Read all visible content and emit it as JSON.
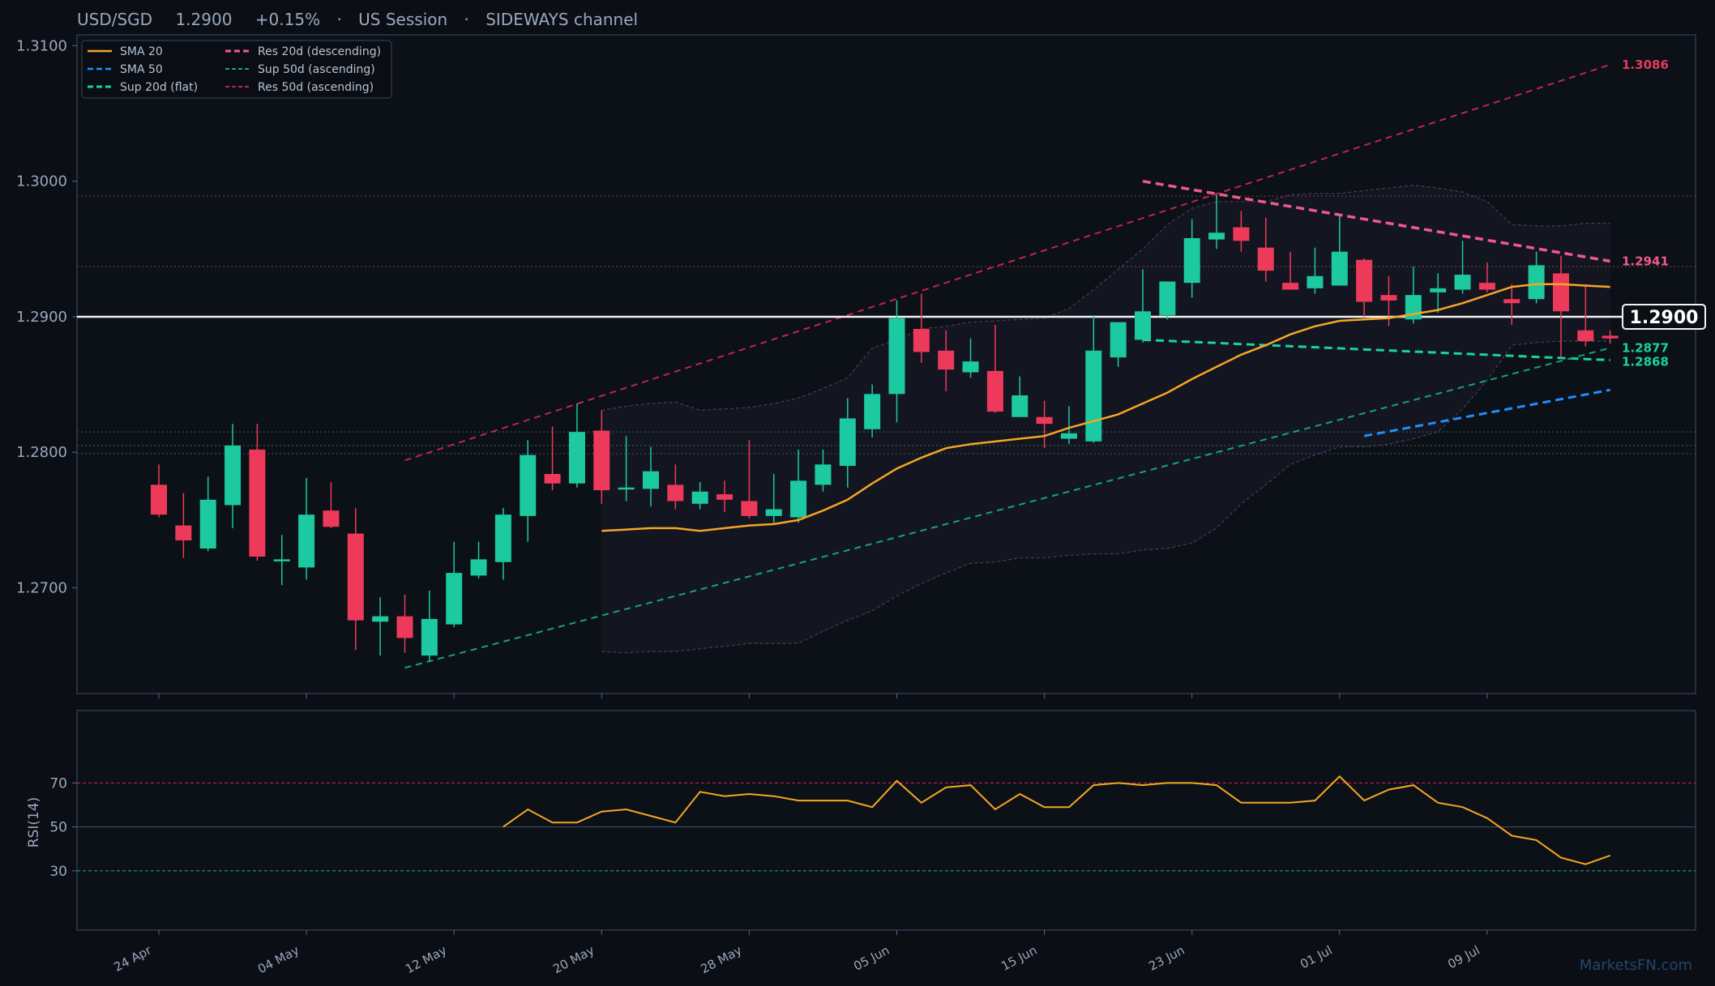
{
  "header": {
    "symbol": "USD/SGD",
    "price": "1.2900",
    "change": "+0.15%",
    "sep": "·",
    "session": "US Session",
    "channel": "SIDEWAYS channel"
  },
  "watermark": "MarketsFN.com",
  "colors": {
    "bg": "#0b0e14",
    "panel_border": "#2b3a52",
    "up": "#1dc9a0",
    "down": "#ee3a5a",
    "sma20": "#f5a623",
    "sma50": "#1e90ff",
    "sup20": "#19d3a2",
    "res20": "#ee5a8c",
    "sup50": "#16a37a",
    "res50": "#c0254f",
    "rsi": "#f5a623",
    "text": "#9aa8bd"
  },
  "chart_data": [
    {
      "type": "candlestick",
      "x_ticks": [
        "24 Apr",
        "04 May",
        "12 May",
        "20 May",
        "28 May",
        "05 Jun",
        "15 Jun",
        "23 Jun",
        "01 Jul",
        "09 Jul"
      ],
      "x_tick_index": [
        0,
        6,
        12,
        18,
        24,
        30,
        36,
        42,
        48,
        54
      ],
      "ylim": [
        1.2622,
        1.3108
      ],
      "y_ticks": [
        "1.2700",
        "1.2800",
        "1.2900",
        "1.3000",
        "1.3100"
      ],
      "y_tick_values": [
        1.27,
        1.28,
        1.29,
        1.3,
        1.31
      ],
      "ohlc": [
        [
          1.2776,
          1.2791,
          1.2752,
          1.2754
        ],
        [
          1.2746,
          1.277,
          1.2722,
          1.2735
        ],
        [
          1.2729,
          1.2782,
          1.2727,
          1.2765
        ],
        [
          1.2761,
          1.2821,
          1.2744,
          1.2805
        ],
        [
          1.2802,
          1.2821,
          1.272,
          1.2723
        ],
        [
          1.272,
          1.2739,
          1.2702,
          1.2721
        ],
        [
          1.2715,
          1.2781,
          1.2706,
          1.2754
        ],
        [
          1.2757,
          1.2778,
          1.2744,
          1.2745
        ],
        [
          1.274,
          1.2759,
          1.2654,
          1.2676
        ],
        [
          1.2675,
          1.2693,
          1.265,
          1.2679
        ],
        [
          1.2679,
          1.2695,
          1.2652,
          1.2663
        ],
        [
          1.265,
          1.2698,
          1.2646,
          1.2677
        ],
        [
          1.2673,
          1.2734,
          1.2671,
          1.2711
        ],
        [
          1.2709,
          1.2734,
          1.2707,
          1.2721
        ],
        [
          1.2719,
          1.2759,
          1.2706,
          1.2754
        ],
        [
          1.2753,
          1.2809,
          1.2734,
          1.2798
        ],
        [
          1.2784,
          1.2819,
          1.2772,
          1.2777
        ],
        [
          1.2777,
          1.2836,
          1.2774,
          1.2815
        ],
        [
          1.2816,
          1.2831,
          1.2762,
          1.2772
        ],
        [
          1.2773,
          1.2812,
          1.2764,
          1.2774
        ],
        [
          1.2773,
          1.2804,
          1.276,
          1.2786
        ],
        [
          1.2776,
          1.2791,
          1.2758,
          1.2764
        ],
        [
          1.2762,
          1.2778,
          1.2758,
          1.2771
        ],
        [
          1.2769,
          1.2779,
          1.2756,
          1.2765
        ],
        [
          1.2764,
          1.2809,
          1.2751,
          1.2753
        ],
        [
          1.2753,
          1.2784,
          1.2748,
          1.2758
        ],
        [
          1.2752,
          1.2802,
          1.2748,
          1.2779
        ],
        [
          1.2776,
          1.2802,
          1.2771,
          1.2791
        ],
        [
          1.279,
          1.284,
          1.2774,
          1.2825
        ],
        [
          1.2817,
          1.285,
          1.2811,
          1.2843
        ],
        [
          1.2843,
          1.2912,
          1.2822,
          1.2899
        ],
        [
          1.2891,
          1.2917,
          1.2866,
          1.2874
        ],
        [
          1.2875,
          1.289,
          1.2845,
          1.2861
        ],
        [
          1.2859,
          1.2884,
          1.2855,
          1.2867
        ],
        [
          1.286,
          1.2894,
          1.2829,
          1.283
        ],
        [
          1.2826,
          1.2856,
          1.2826,
          1.2842
        ],
        [
          1.2826,
          1.2838,
          1.2803,
          1.2821
        ],
        [
          1.281,
          1.2834,
          1.2806,
          1.2814
        ],
        [
          1.2808,
          1.2901,
          1.2807,
          1.2875
        ],
        [
          1.287,
          1.2896,
          1.2863,
          1.2896
        ],
        [
          1.2883,
          1.2935,
          1.2881,
          1.2904
        ],
        [
          1.2901,
          1.2926,
          1.2898,
          1.2926
        ],
        [
          1.2925,
          1.2972,
          1.2914,
          1.2958
        ],
        [
          1.2957,
          1.299,
          1.295,
          1.2962
        ],
        [
          1.2966,
          1.2978,
          1.2948,
          1.2956
        ],
        [
          1.2951,
          1.2973,
          1.2926,
          1.2934
        ],
        [
          1.2925,
          1.2948,
          1.292,
          1.292
        ],
        [
          1.2921,
          1.2951,
          1.2917,
          1.293
        ],
        [
          1.2923,
          1.2974,
          1.2923,
          1.2948
        ],
        [
          1.2942,
          1.2943,
          1.29,
          1.2911
        ],
        [
          1.2916,
          1.293,
          1.2893,
          1.2912
        ],
        [
          1.2898,
          1.2937,
          1.2895,
          1.2916
        ],
        [
          1.2918,
          1.2932,
          1.2903,
          1.2921
        ],
        [
          1.292,
          1.2956,
          1.2917,
          1.2931
        ],
        [
          1.2925,
          1.294,
          1.2918,
          1.292
        ],
        [
          1.2913,
          1.2924,
          1.2894,
          1.291
        ],
        [
          1.2913,
          1.2948,
          1.291,
          1.2938
        ],
        [
          1.2932,
          1.2945,
          1.287,
          1.2904
        ],
        [
          1.289,
          1.2924,
          1.2878,
          1.2882
        ],
        [
          1.2886,
          1.289,
          1.288,
          1.2884
        ]
      ],
      "series": [
        {
          "name": "SMA 20",
          "style": "solid",
          "start": 18,
          "values": [
            1.2742,
            1.2743,
            1.2744,
            1.2744,
            1.2742,
            1.2744,
            1.2746,
            1.2747,
            1.275,
            1.2757,
            1.2765,
            1.2777,
            1.2788,
            1.2796,
            1.2803,
            1.2806,
            1.2808,
            1.281,
            1.2812,
            1.2818,
            1.2823,
            1.2828,
            1.2836,
            1.2844,
            1.2854,
            1.2863,
            1.2872,
            1.2879,
            1.2887,
            1.2893,
            1.2897,
            1.2898,
            1.2899,
            1.2902,
            1.2905,
            1.291,
            1.2916,
            1.2922,
            1.2924,
            1.2924,
            1.2923,
            1.2922
          ]
        },
        {
          "name": "SMA 50",
          "style": "dashed",
          "start": 49,
          "values": [
            1.2812,
            1.2846
          ],
          "end": 59
        },
        {
          "name": "Sup 20d (flat)",
          "style": "dashed",
          "start": 40,
          "values": [
            1.2883,
            1.2868
          ],
          "end": 59
        },
        {
          "name": "Res 20d (descending)",
          "style": "dashed",
          "start": 40,
          "values": [
            1.3,
            1.2941
          ],
          "end": 59
        },
        {
          "name": "Sup 50d (ascending)",
          "style": "dashed",
          "start": 10,
          "values": [
            1.2641,
            1.2877
          ],
          "end": 59
        },
        {
          "name": "Res 50d (ascending)",
          "style": "dashed",
          "start": 10,
          "values": [
            1.2794,
            1.3086
          ],
          "end": 59
        }
      ],
      "bollinger": {
        "start": 18,
        "upper": [
          1.2831,
          1.2834,
          1.2836,
          1.2837,
          1.2831,
          1.2832,
          1.2833,
          1.2836,
          1.284,
          1.2847,
          1.2855,
          1.2877,
          1.2883,
          1.2891,
          1.2893,
          1.2896,
          1.2897,
          1.2898,
          1.2899,
          1.2906,
          1.292,
          1.2935,
          1.295,
          1.2968,
          1.298,
          1.2985,
          1.2985,
          1.2985,
          1.299,
          1.2991,
          1.2991,
          1.2993,
          1.2995,
          1.2997,
          1.2995,
          1.2992,
          1.2985,
          1.2968,
          1.2967,
          1.2967,
          1.2969,
          1.2969
        ],
        "lower": [
          1.2653,
          1.2652,
          1.2653,
          1.2653,
          1.2655,
          1.2657,
          1.2659,
          1.2659,
          1.2659,
          1.2668,
          1.2676,
          1.2683,
          1.2694,
          1.2703,
          1.2711,
          1.2718,
          1.2719,
          1.2722,
          1.2722,
          1.2724,
          1.2725,
          1.2725,
          1.2728,
          1.2729,
          1.2733,
          1.2744,
          1.2762,
          1.2776,
          1.2791,
          1.2798,
          1.2804,
          1.2804,
          1.2806,
          1.281,
          1.2815,
          1.2832,
          1.2853,
          1.2879,
          1.2881,
          1.2882,
          1.2882,
          1.2882
        ]
      },
      "hlines": [
        {
          "value": 1.2989,
          "color": "#7a3a3a",
          "style": "dotted"
        },
        {
          "value": 1.2937,
          "color": "#7a3a3a",
          "style": "dotted"
        },
        {
          "value": 1.2815,
          "color": "#2c5a3f",
          "style": "dotted"
        },
        {
          "value": 1.2805,
          "color": "#2c5a3f",
          "style": "dotted"
        },
        {
          "value": 1.2799,
          "color": "#2c4a5a",
          "style": "dotted"
        }
      ],
      "current_price": {
        "value": 1.29,
        "label": "1.2900"
      },
      "right_labels": [
        {
          "text": "1.3086",
          "value": 1.3086,
          "color": "#e83a5a"
        },
        {
          "text": "1.2941",
          "value": 1.2941,
          "color": "#ee5a8c"
        },
        {
          "text": "1.2877",
          "value": 1.2877,
          "color": "#19d3a2"
        },
        {
          "text": "1.2868",
          "value": 1.2868,
          "color": "#19d3a2"
        }
      ],
      "legend": {
        "placement": "top-left",
        "entries": [
          "SMA 20",
          "Res 20d (descending)",
          "SMA 50",
          "Sup 50d (ascending)",
          "Sup 20d (flat)",
          "Res 50d (ascending)"
        ]
      }
    },
    {
      "type": "line",
      "ylabel": "RSI(14)",
      "ylim": [
        3,
        103
      ],
      "y_ticks": [
        "30",
        "50",
        "70"
      ],
      "y_tick_values": [
        30,
        50,
        70
      ],
      "hlines": [
        {
          "value": 70,
          "color": "#c0254f"
        },
        {
          "value": 50,
          "color": "#3a4658"
        },
        {
          "value": 30,
          "color": "#16a37a"
        }
      ],
      "start": 14,
      "values": [
        50,
        58,
        52,
        52,
        57,
        58,
        55,
        52,
        66,
        64,
        65,
        64,
        62,
        62,
        62,
        59,
        71,
        61,
        68,
        69,
        58,
        65,
        59,
        59,
        69,
        70,
        69,
        70,
        70,
        69,
        61,
        61,
        61,
        62,
        73,
        62,
        67,
        69,
        61,
        59,
        54,
        46,
        44,
        36,
        33,
        37
      ]
    }
  ]
}
